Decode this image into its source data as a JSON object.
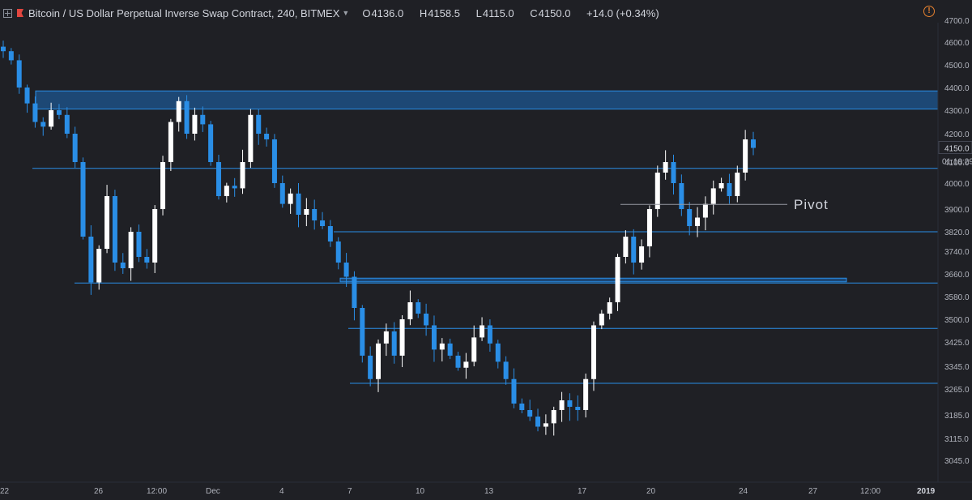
{
  "header": {
    "title": "Bitcoin / US Dollar Perpetual Inverse Swap Contract, 240, BITMEX",
    "ohlc": [
      {
        "label": "O",
        "value": "4136.0"
      },
      {
        "label": "H",
        "value": "4158.5"
      },
      {
        "label": "L",
        "value": "4115.0"
      },
      {
        "label": "C",
        "value": "4150.0"
      }
    ],
    "change": "+14.0 (+0.34%)"
  },
  "colors": {
    "background": "#1f2025",
    "up": "#ffffff",
    "down": "#2a8ee6",
    "zone": "#1e5590",
    "level_line": "#2a8ee6",
    "axis_text": "#b2b5be",
    "pivot_line": "#9598a1"
  },
  "chart_data": {
    "type": "candlestick",
    "price_axis": {
      "ticks": [
        "4700.0",
        "4600.0",
        "4500.0",
        "4400.0",
        "4300.0",
        "4200.0",
        "4100.0",
        "4000.0",
        "3900.0",
        "3820.0",
        "3740.0",
        "3660.0",
        "3580.0",
        "3500.0",
        "3425.0",
        "3345.0",
        "3265.0",
        "3185.0",
        "3115.0",
        "3045.0"
      ],
      "ylim": [
        3015,
        4740
      ]
    },
    "time_axis": {
      "ticks": [
        "22",
        "26",
        "12:00",
        "Dec",
        "4",
        "7",
        "10",
        "13",
        "17",
        "20",
        "24",
        "27",
        "12:00",
        "2019"
      ],
      "bold_ticks": [
        "2019"
      ]
    },
    "last_price": "4150.0",
    "countdown": "01:19:29",
    "zones": [
      {
        "low": 4305,
        "high": 4385
      },
      {
        "low": 3632,
        "high": 3645
      }
    ],
    "levels": [
      4070,
      3820,
      3628,
      3470,
      3285
    ],
    "pivot": {
      "label": "Pivot",
      "price": 3918
    },
    "candle_closes": [
      4560,
      4520,
      4400,
      4330,
      4250,
      4230,
      4300,
      4280,
      4200,
      4100,
      3800,
      3630,
      3750,
      3950,
      3700,
      3680,
      3820,
      3720,
      3700,
      3900,
      4100,
      4250,
      4340,
      4200,
      4280,
      4240,
      4100,
      3950,
      3990,
      3980,
      4100,
      4280,
      4200,
      4180,
      4000,
      3920,
      3960,
      3880,
      3900,
      3860,
      3840,
      3780,
      3700,
      3650,
      3540,
      3380,
      3300,
      3420,
      3460,
      3380,
      3500,
      3560,
      3520,
      3480,
      3400,
      3420,
      3380,
      3340,
      3360,
      3440,
      3480,
      3420,
      3360,
      3300,
      3220,
      3200,
      3180,
      3150,
      3160,
      3200,
      3230,
      3210,
      3200,
      3300,
      3480,
      3520,
      3560,
      3720,
      3800,
      3700,
      3760,
      3900,
      4050,
      4100,
      4000,
      3900,
      3840,
      3870,
      3920,
      3980,
      4000,
      3950,
      4050,
      4180,
      4150
    ]
  }
}
